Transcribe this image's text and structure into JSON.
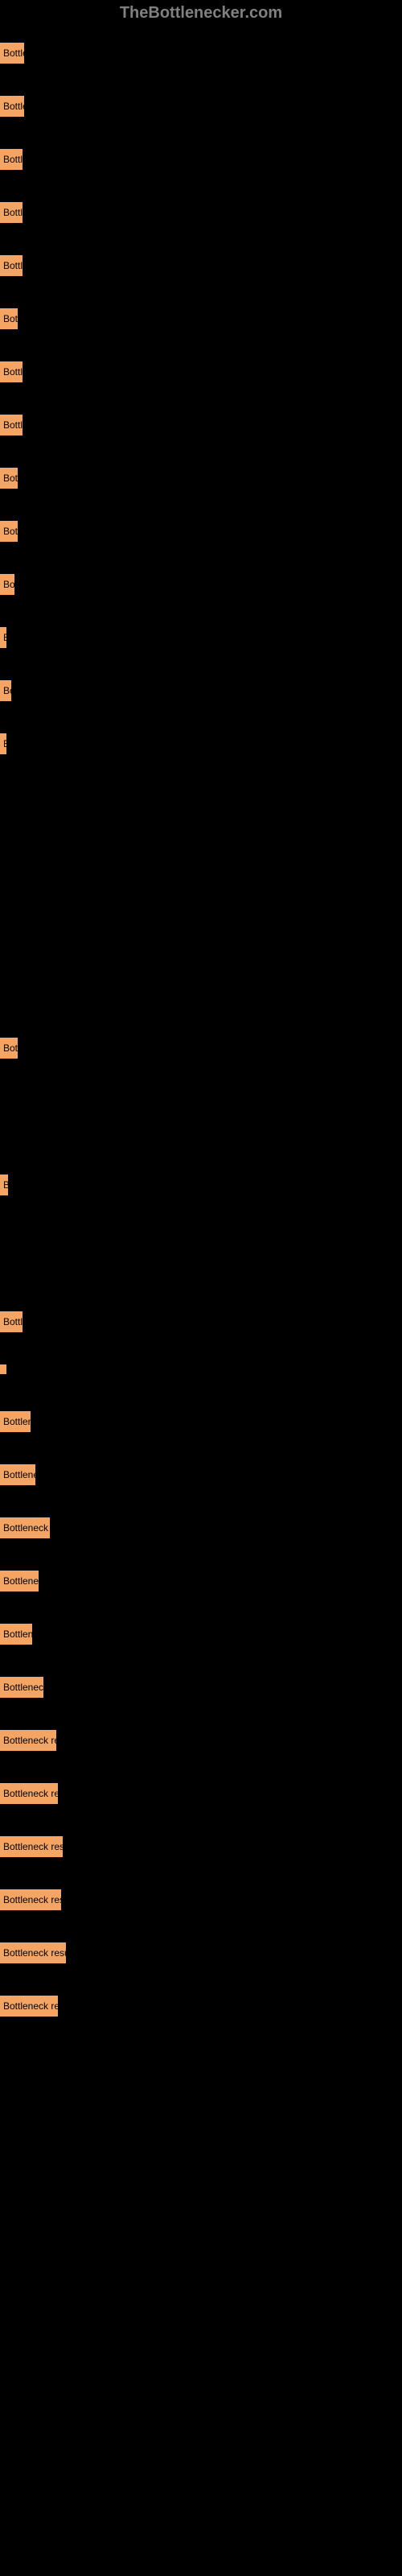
{
  "header": {
    "title": "TheBottlenecker.com"
  },
  "items": [
    {
      "label": "Bottleneck",
      "width": 30
    },
    {
      "label": "Bottleneck",
      "width": 30
    },
    {
      "label": "Bottleneck",
      "width": 28
    },
    {
      "label": "Bottleneck",
      "width": 28
    },
    {
      "label": "Bottleneck",
      "width": 28
    },
    {
      "label": "Bottleneck",
      "width": 22
    },
    {
      "label": "Bottleneck",
      "width": 28
    },
    {
      "label": "Bottleneck",
      "width": 28
    },
    {
      "label": "Bottleneck",
      "width": 22
    },
    {
      "label": "Bottleneck",
      "width": 22
    },
    {
      "label": "Bottleneck",
      "width": 18
    },
    {
      "label": "Bottleneck",
      "width": 4
    },
    {
      "label": "Bottleneck",
      "width": 14
    },
    {
      "label": "Bottleneck",
      "width": 4
    },
    {
      "label": "",
      "width": 0
    },
    {
      "label": "",
      "width": 0
    },
    {
      "label": "",
      "width": 0
    },
    {
      "label": "",
      "width": 0
    },
    {
      "label": "",
      "width": 0
    },
    {
      "label": "",
      "width": 0
    },
    {
      "label": "Bottleneck",
      "width": 22
    },
    {
      "label": "",
      "width": 0
    },
    {
      "label": "",
      "width": 0
    },
    {
      "label": "Bottleneck",
      "width": 10
    },
    {
      "label": "",
      "width": 0
    },
    {
      "label": "",
      "width": 0
    },
    {
      "label": "Bottleneck",
      "width": 28
    },
    {
      "label": "",
      "width": 2
    },
    {
      "label": "Bottleneck",
      "width": 38
    },
    {
      "label": "Bottleneck",
      "width": 44
    },
    {
      "label": "Bottleneck r",
      "width": 62
    },
    {
      "label": "Bottleneck",
      "width": 48
    },
    {
      "label": "Bottleneck",
      "width": 40
    },
    {
      "label": "Bottleneck",
      "width": 54
    },
    {
      "label": "Bottleneck res",
      "width": 70
    },
    {
      "label": "Bottleneck res",
      "width": 72
    },
    {
      "label": "Bottleneck resu",
      "width": 78
    },
    {
      "label": "Bottleneck resu",
      "width": 76
    },
    {
      "label": "Bottleneck resul",
      "width": 82
    },
    {
      "label": "Bottleneck res",
      "width": 72
    }
  ]
}
